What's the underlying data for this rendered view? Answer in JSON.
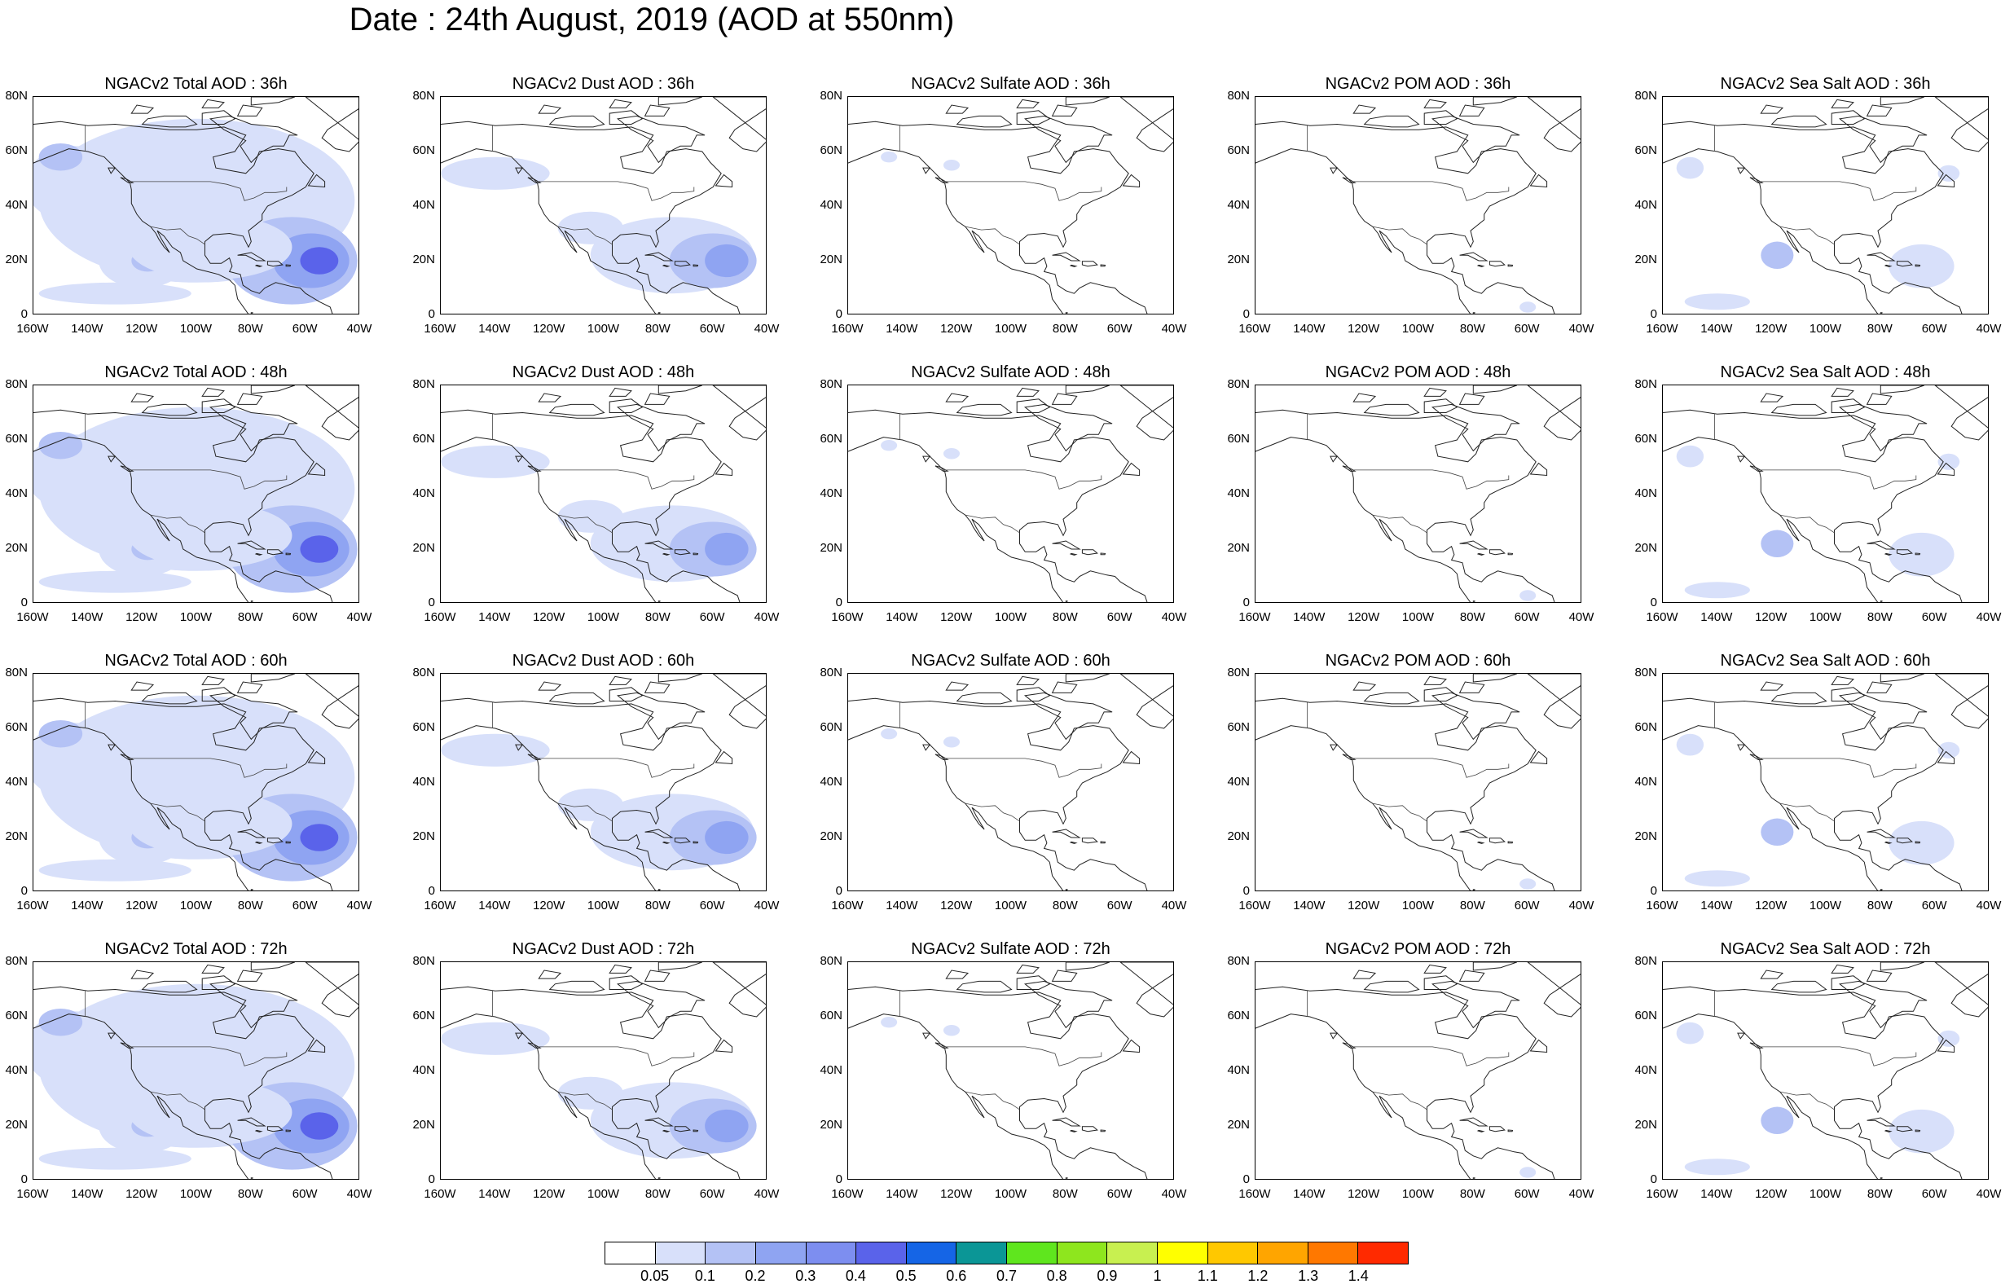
{
  "title": "Date : 24th August, 2019 (AOD at 550nm)",
  "axis": {
    "x_ticks": [
      "160W",
      "140W",
      "120W",
      "100W",
      "80W",
      "60W",
      "40W"
    ],
    "y_ticks": [
      "80N",
      "60N",
      "40N",
      "20N",
      "0"
    ]
  },
  "colorbar": {
    "colors": [
      "#ffffff",
      "#d8e0fa",
      "#b4c2f5",
      "#8fa4f2",
      "#7d8ef0",
      "#5a63ea",
      "#1565e6",
      "#0b9696",
      "#5fe61e",
      "#8ee61e",
      "#c8f050",
      "#ffff00",
      "#ffc800",
      "#ffa500",
      "#ff7800",
      "#ff2a00"
    ],
    "labels": [
      "0.05",
      "0.1",
      "0.2",
      "0.3",
      "0.4",
      "0.5",
      "0.6",
      "0.7",
      "0.8",
      "0.9",
      "1",
      "1.1",
      "1.2",
      "1.3",
      "1.4"
    ]
  },
  "panels": [
    {
      "title": "NGACv2 Total AOD : 36h",
      "species": "total"
    },
    {
      "title": "NGACv2 Dust AOD : 36h",
      "species": "dust"
    },
    {
      "title": "NGACv2 Sulfate AOD : 36h",
      "species": "sulfate"
    },
    {
      "title": "NGACv2 POM AOD : 36h",
      "species": "pom"
    },
    {
      "title": "NGACv2 Sea Salt AOD : 36h",
      "species": "seasalt"
    },
    {
      "title": "NGACv2 Total AOD : 48h",
      "species": "total"
    },
    {
      "title": "NGACv2 Dust AOD : 48h",
      "species": "dust"
    },
    {
      "title": "NGACv2 Sulfate AOD : 48h",
      "species": "sulfate"
    },
    {
      "title": "NGACv2 POM AOD : 48h",
      "species": "pom"
    },
    {
      "title": "NGACv2 Sea Salt AOD : 48h",
      "species": "seasalt"
    },
    {
      "title": "NGACv2 Total AOD : 60h",
      "species": "total"
    },
    {
      "title": "NGACv2 Dust AOD : 60h",
      "species": "dust"
    },
    {
      "title": "NGACv2 Sulfate AOD : 60h",
      "species": "sulfate"
    },
    {
      "title": "NGACv2 POM AOD : 60h",
      "species": "pom"
    },
    {
      "title": "NGACv2 Sea Salt AOD : 60h",
      "species": "seasalt"
    },
    {
      "title": "NGACv2 Total AOD : 72h",
      "species": "total"
    },
    {
      "title": "NGACv2 Dust AOD : 72h",
      "species": "dust"
    },
    {
      "title": "NGACv2 Sulfate AOD : 72h",
      "species": "sulfate"
    },
    {
      "title": "NGACv2 POM AOD : 72h",
      "species": "pom"
    },
    {
      "title": "NGACv2 Sea Salt  AOD : 72h",
      "species": "seasalt"
    }
  ]
}
